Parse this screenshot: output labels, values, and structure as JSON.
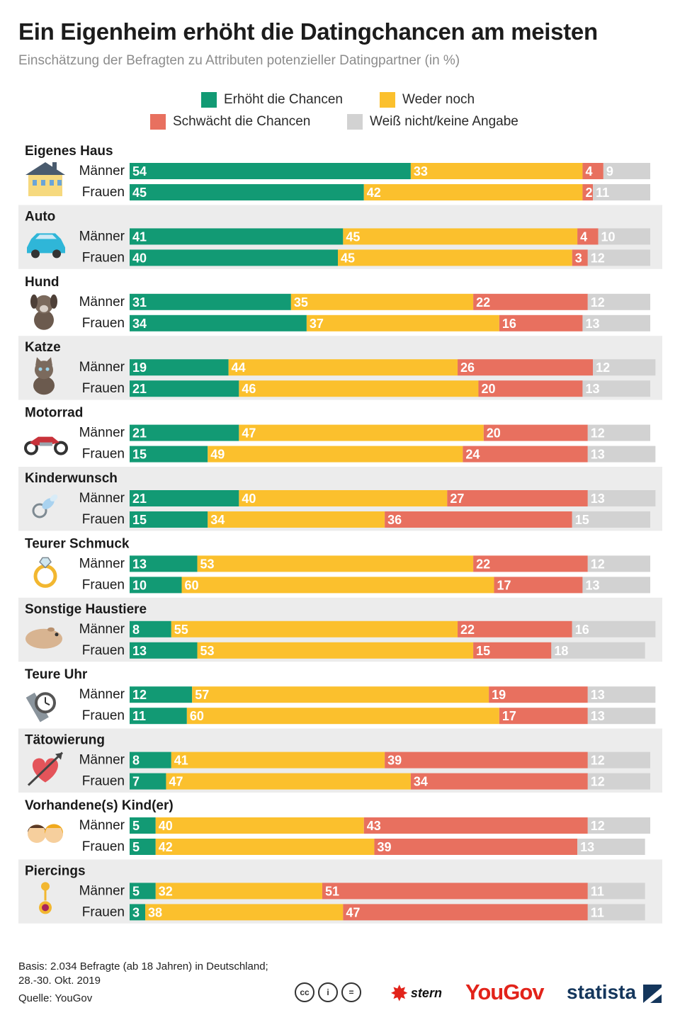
{
  "title": "Ein Eigenheim erhöht die Datingchancen am meisten",
  "subtitle": "Einschätzung der Befragten zu Attributen potenzieller Datingpartner (in %)",
  "colors": {
    "increase": "#129a74",
    "neither": "#fbc02d",
    "weaken": "#e8705f",
    "unknown": "#d2d2d2",
    "band": "#ececec"
  },
  "legend": [
    {
      "label": "Erhöht die Chancen",
      "color": "#129a74"
    },
    {
      "label": "Weder noch",
      "color": "#fbc02d"
    },
    {
      "label": "Schwächt die Chancen",
      "color": "#e8705f"
    },
    {
      "label": "Weiß nicht/keine Angabe",
      "color": "#d2d2d2"
    }
  ],
  "chart_data": {
    "type": "bar",
    "orientation": "horizontal",
    "stacked": true,
    "title": "Ein Eigenheim erhöht die Datingchancen am meisten",
    "unit": "%",
    "series_names": [
      "Erhöht die Chancen",
      "Weder noch",
      "Schwächt die Chancen",
      "Weiß nicht/keine Angabe"
    ],
    "groups": [
      {
        "category": "Eigenes Haus",
        "icon": "house-icon",
        "rows": [
          {
            "label": "Männer",
            "values": [
              54,
              33,
              4,
              9
            ]
          },
          {
            "label": "Frauen",
            "values": [
              45,
              42,
              2,
              11
            ]
          }
        ]
      },
      {
        "category": "Auto",
        "icon": "car-icon",
        "rows": [
          {
            "label": "Männer",
            "values": [
              41,
              45,
              4,
              10
            ]
          },
          {
            "label": "Frauen",
            "values": [
              40,
              45,
              3,
              12
            ]
          }
        ]
      },
      {
        "category": "Hund",
        "icon": "dog-icon",
        "rows": [
          {
            "label": "Männer",
            "values": [
              31,
              35,
              22,
              12
            ]
          },
          {
            "label": "Frauen",
            "values": [
              34,
              37,
              16,
              13
            ]
          }
        ]
      },
      {
        "category": "Katze",
        "icon": "cat-icon",
        "rows": [
          {
            "label": "Männer",
            "values": [
              19,
              44,
              26,
              12
            ]
          },
          {
            "label": "Frauen",
            "values": [
              21,
              46,
              20,
              13
            ]
          }
        ]
      },
      {
        "category": "Motorrad",
        "icon": "motorcycle-icon",
        "rows": [
          {
            "label": "Männer",
            "values": [
              21,
              47,
              20,
              12
            ]
          },
          {
            "label": "Frauen",
            "values": [
              15,
              49,
              24,
              13
            ]
          }
        ]
      },
      {
        "category": "Kinderwunsch",
        "icon": "pacifier-icon",
        "rows": [
          {
            "label": "Männer",
            "values": [
              21,
              40,
              27,
              13
            ]
          },
          {
            "label": "Frauen",
            "values": [
              15,
              34,
              36,
              15
            ]
          }
        ]
      },
      {
        "category": "Teurer Schmuck",
        "icon": "ring-icon",
        "rows": [
          {
            "label": "Männer",
            "values": [
              13,
              53,
              22,
              12
            ]
          },
          {
            "label": "Frauen",
            "values": [
              10,
              60,
              17,
              13
            ]
          }
        ]
      },
      {
        "category": "Sonstige Haustiere",
        "icon": "guinea-pig-icon",
        "rows": [
          {
            "label": "Männer",
            "values": [
              8,
              55,
              22,
              16
            ]
          },
          {
            "label": "Frauen",
            "values": [
              13,
              53,
              15,
              18
            ]
          }
        ]
      },
      {
        "category": "Teure Uhr",
        "icon": "watch-icon",
        "rows": [
          {
            "label": "Männer",
            "values": [
              12,
              57,
              19,
              13
            ]
          },
          {
            "label": "Frauen",
            "values": [
              11,
              60,
              17,
              13
            ]
          }
        ]
      },
      {
        "category": "Tätowierung",
        "icon": "heart-arrow-icon",
        "rows": [
          {
            "label": "Männer",
            "values": [
              8,
              41,
              39,
              12
            ]
          },
          {
            "label": "Frauen",
            "values": [
              7,
              47,
              34,
              12
            ]
          }
        ]
      },
      {
        "category": "Vorhandene(s) Kind(er)",
        "icon": "children-icon",
        "rows": [
          {
            "label": "Männer",
            "values": [
              5,
              40,
              43,
              12
            ]
          },
          {
            "label": "Frauen",
            "values": [
              5,
              42,
              39,
              13
            ]
          }
        ]
      },
      {
        "category": "Piercings",
        "icon": "piercing-icon",
        "rows": [
          {
            "label": "Männer",
            "values": [
              5,
              32,
              51,
              11
            ]
          },
          {
            "label": "Frauen",
            "values": [
              3,
              38,
              47,
              11
            ]
          }
        ]
      }
    ]
  },
  "footer": {
    "basis_line1": "Basis: 2.034 Befragte (ab 18 Jahren) in Deutschland;",
    "basis_line2": "28.-30. Okt. 2019",
    "source": "Quelle: YouGov",
    "logo_stern": "stern",
    "logo_yougov": "YouGov",
    "logo_statista": "statista"
  }
}
